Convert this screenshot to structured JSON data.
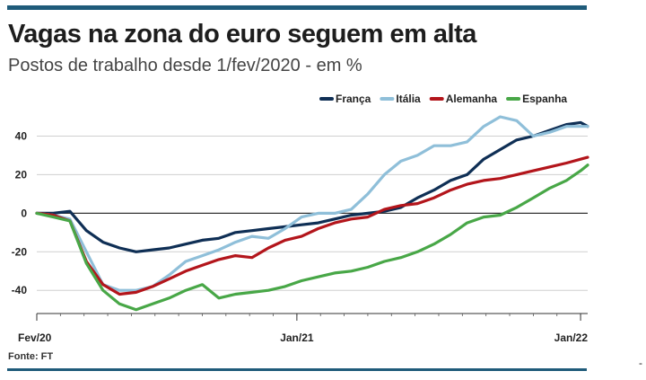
{
  "header": {
    "title": "Vagas na zona do euro seguem em alta",
    "subtitle": "Postos de trabalho desde 1/fev/2020 - em %"
  },
  "footer": {
    "source": "Fonte: FT",
    "stray_mark": "-"
  },
  "colors": {
    "franca": "#0f2f55",
    "italia": "#8fbfd9",
    "alemanha": "#b3151b",
    "espanha": "#48a747",
    "bars": "#1f5b7a",
    "grid": "#cfcfcf"
  },
  "chart_data": {
    "type": "line",
    "title": "Vagas na zona do euro seguem em alta",
    "subtitle": "Postos de trabalho desde 1/fev/2020 - em %",
    "xlabel": "",
    "ylabel": "",
    "x_ticks": [
      "Fev/20",
      "Jan/21",
      "Jan/22"
    ],
    "x_tick_month_index": [
      0,
      11,
      23
    ],
    "xlim": [
      0,
      23.3
    ],
    "y_ticks": [
      40,
      20,
      0,
      -20,
      -40
    ],
    "ylim": [
      -52,
      50
    ],
    "grid": true,
    "legend_position": "top-right",
    "x": [
      0,
      0.7,
      1.4,
      2.1,
      2.8,
      3.5,
      4.2,
      4.9,
      5.6,
      6.3,
      7.0,
      7.7,
      8.4,
      9.1,
      9.8,
      10.5,
      11.2,
      11.9,
      12.6,
      13.3,
      14.0,
      14.7,
      15.4,
      16.1,
      16.8,
      17.5,
      18.2,
      18.9,
      19.6,
      20.3,
      21.0,
      21.7,
      22.4,
      23.0,
      23.3
    ],
    "series": [
      {
        "name": "França",
        "color_key": "franca",
        "values": [
          0,
          0,
          1,
          -9,
          -15,
          -18,
          -20,
          -19,
          -18,
          -16,
          -14,
          -13,
          -10,
          -9,
          -8,
          -7,
          -6,
          -5,
          -3,
          -1,
          0,
          1,
          3,
          8,
          12,
          17,
          20,
          28,
          33,
          38,
          40,
          43,
          46,
          47,
          45
        ]
      },
      {
        "name": "Itália",
        "color_key": "italia",
        "values": [
          0,
          -1,
          -3,
          -20,
          -37,
          -40,
          -40,
          -38,
          -32,
          -25,
          -22,
          -19,
          -15,
          -12,
          -13,
          -8,
          -2,
          0,
          0,
          2,
          10,
          20,
          27,
          30,
          35,
          35,
          37,
          45,
          50,
          48,
          40,
          42,
          45,
          45,
          45
        ]
      },
      {
        "name": "Alemanha",
        "color_key": "alemanha",
        "values": [
          0,
          -1,
          -4,
          -25,
          -37,
          -42,
          -41,
          -38,
          -34,
          -30,
          -27,
          -24,
          -22,
          -23,
          -18,
          -14,
          -12,
          -8,
          -5,
          -3,
          -2,
          2,
          4,
          5,
          8,
          12,
          15,
          17,
          18,
          20,
          22,
          24,
          26,
          28,
          29
        ]
      },
      {
        "name": "Espanha",
        "color_key": "espanha",
        "values": [
          0,
          -2,
          -4,
          -26,
          -40,
          -47,
          -50,
          -47,
          -44,
          -40,
          -37,
          -44,
          -42,
          -41,
          -40,
          -38,
          -35,
          -33,
          -31,
          -30,
          -28,
          -25,
          -23,
          -20,
          -16,
          -11,
          -5,
          -2,
          -1,
          3,
          8,
          13,
          17,
          22,
          25
        ]
      }
    ]
  }
}
